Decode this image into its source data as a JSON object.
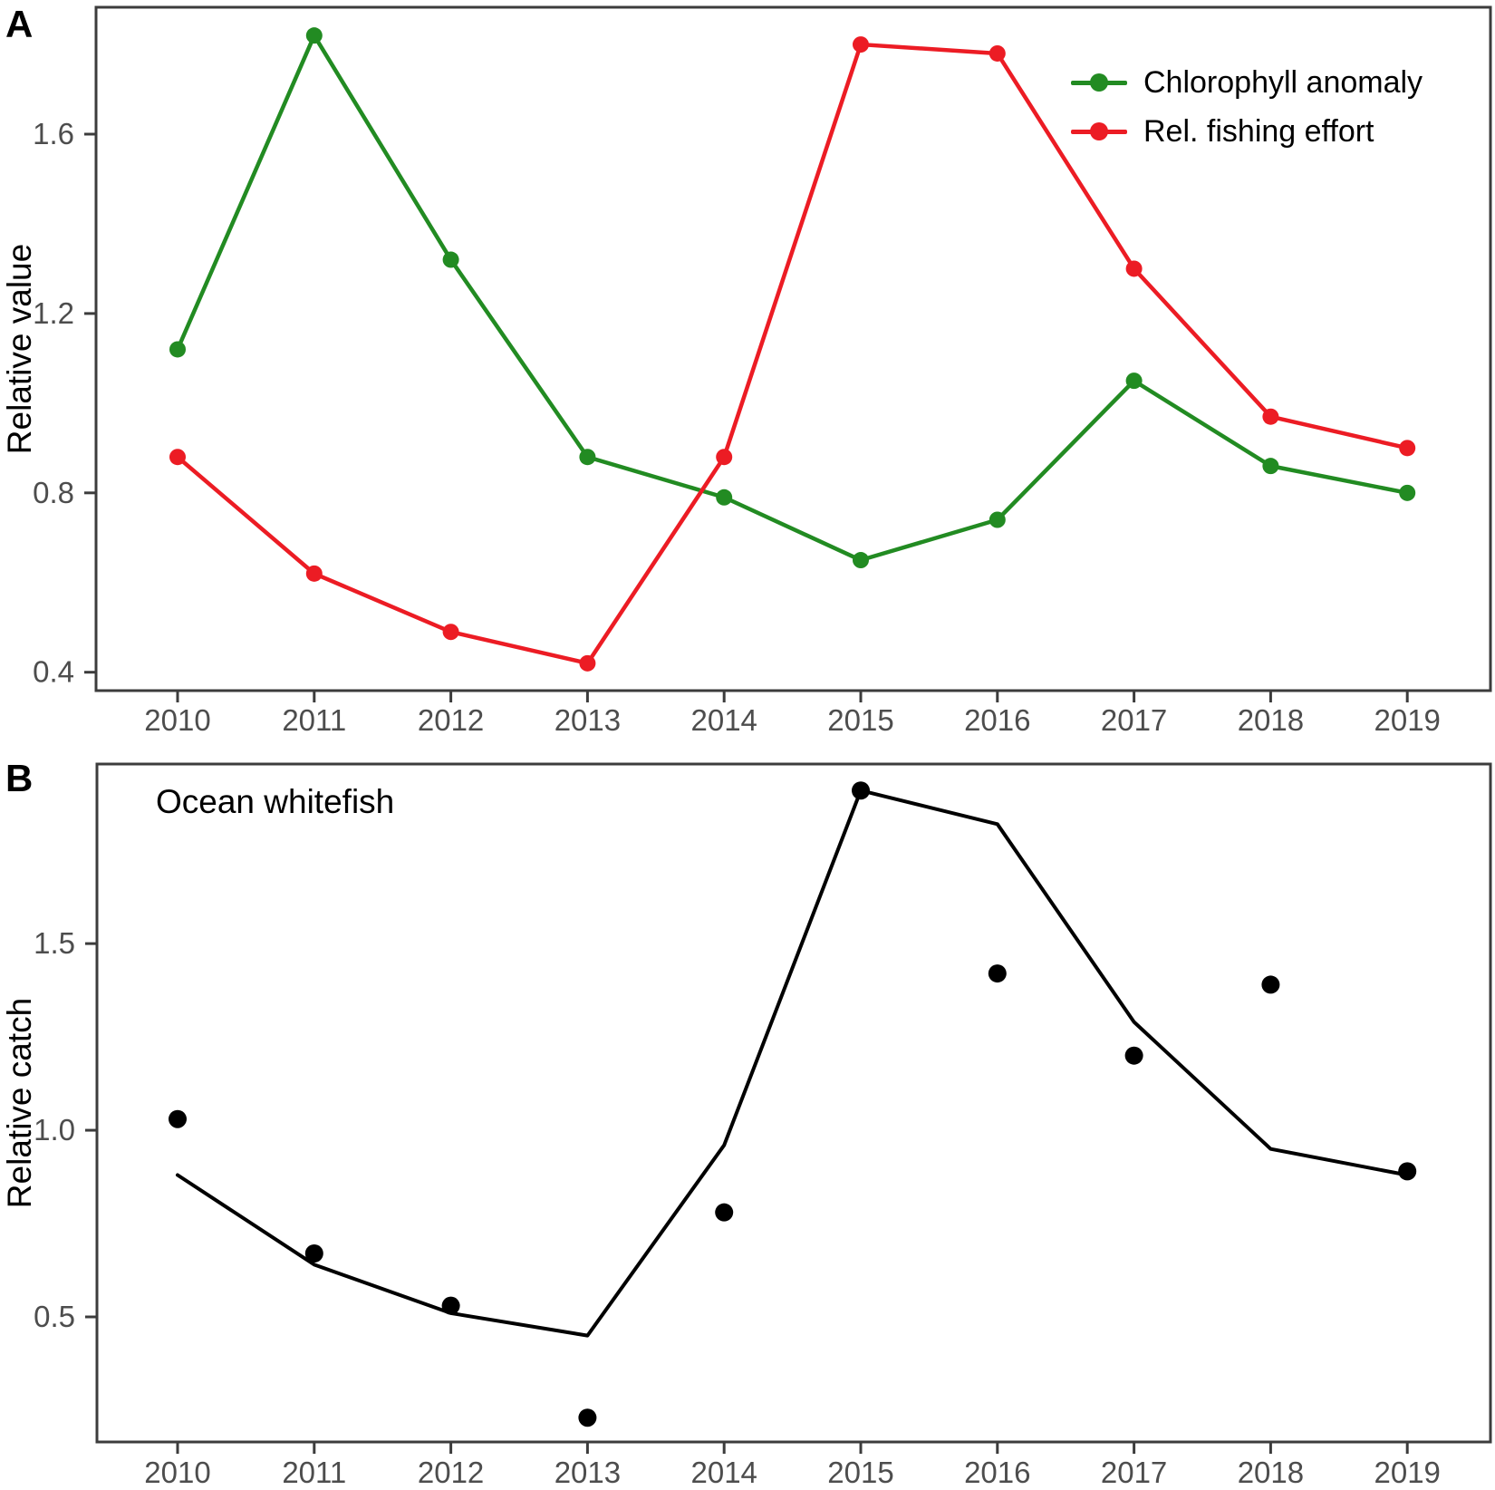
{
  "figure_background": "#ffffff",
  "axis_color": "#3c3c3c",
  "tick_label_color": "#4d4d4d",
  "panel_a": {
    "letter": "A"
  },
  "panel_b": {
    "letter": "B",
    "title": "Ocean whitefish"
  },
  "legend": {
    "position": "top-right-inside-panel-A",
    "items": [
      {
        "label": "Chlorophyll anomaly",
        "color": "#228B22"
      },
      {
        "label": "Rel. fishing effort",
        "color": "#EC1C24"
      }
    ]
  },
  "chart_data": [
    {
      "panel": "A",
      "type": "line",
      "title": "",
      "xlabel": "",
      "ylabel": "Relative value",
      "x": [
        2010,
        2011,
        2012,
        2013,
        2014,
        2015,
        2016,
        2017,
        2018,
        2019
      ],
      "xtick_labels": [
        "2010",
        "2011",
        "2012",
        "2013",
        "2014",
        "2015",
        "2016",
        "2017",
        "2018",
        "2019"
      ],
      "yticks": [
        {
          "label": "0.4",
          "value": 0.4
        },
        {
          "label": "0.8",
          "value": 0.8
        },
        {
          "label": "1.2",
          "value": 1.2
        },
        {
          "label": "1.6",
          "value": 1.6
        }
      ],
      "ylim": [
        0.36,
        1.88
      ],
      "grid": false,
      "legend_position": "top-right",
      "series": [
        {
          "name": "Chlorophyll anomaly",
          "color": "#228B22",
          "style": "line+marker",
          "values": [
            1.12,
            1.82,
            1.32,
            0.88,
            0.79,
            0.65,
            0.74,
            1.05,
            0.86,
            0.8
          ]
        },
        {
          "name": "Rel. fishing effort",
          "color": "#EC1C24",
          "style": "line+marker",
          "values": [
            0.88,
            0.62,
            0.49,
            0.42,
            0.88,
            1.8,
            1.78,
            1.3,
            0.97,
            0.9
          ]
        }
      ]
    },
    {
      "panel": "B",
      "type": "line+scatter",
      "title": "Ocean whitefish",
      "xlabel": "",
      "ylabel": "Relative catch",
      "x": [
        2010,
        2011,
        2012,
        2013,
        2014,
        2015,
        2016,
        2017,
        2018,
        2019
      ],
      "xtick_labels": [
        "2010",
        "2011",
        "2012",
        "2013",
        "2014",
        "2015",
        "2016",
        "2017",
        "2018",
        "2019"
      ],
      "yticks": [
        {
          "label": "0.5",
          "value": 0.5
        },
        {
          "label": "1.0",
          "value": 1.0
        },
        {
          "label": "1.5",
          "value": 1.5
        }
      ],
      "ylim": [
        0.17,
        1.98
      ],
      "grid": false,
      "legend_position": "none",
      "series": [
        {
          "name": "black-line",
          "color": "#000000",
          "style": "line",
          "values": [
            0.88,
            0.64,
            0.51,
            0.45,
            0.96,
            1.91,
            1.82,
            1.29,
            0.95,
            0.88
          ]
        },
        {
          "name": "black-points",
          "color": "#000000",
          "style": "scatter",
          "values": [
            1.03,
            0.67,
            0.53,
            0.23,
            0.78,
            1.91,
            1.42,
            1.2,
            1.39,
            0.89
          ]
        }
      ]
    }
  ]
}
